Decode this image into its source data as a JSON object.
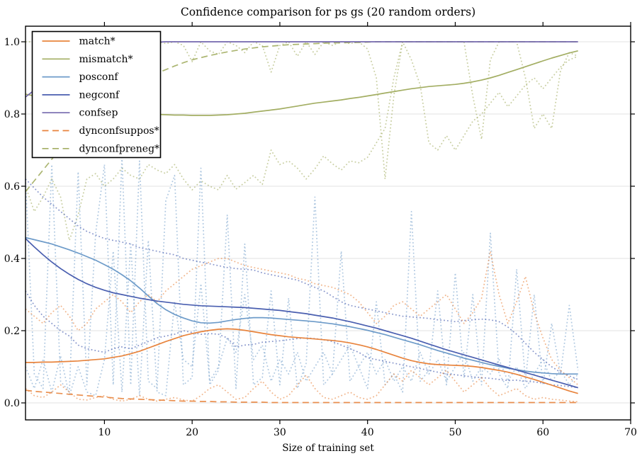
{
  "figure": {
    "title": "Confidence comparison for ps gs (20 random orders)",
    "xlabel": "Size of training set"
  },
  "colors": {
    "orange": "#e8843d",
    "olive": "#a3ae63",
    "lightblue": "#6d9bc9",
    "navy": "#4a5fb0",
    "purple": "#7468ae",
    "grid": "#e0e0e0",
    "spine": "#000000",
    "legend_border": "#000000",
    "legend_bg": "#ffffff"
  },
  "chart_data": {
    "type": "line",
    "title": "Confidence comparison for ps gs (20 random orders)",
    "xlabel": "Size of training set",
    "ylabel": "",
    "xlim": [
      1,
      70
    ],
    "ylim": [
      -0.047,
      1.043
    ],
    "xticks": [
      10,
      20,
      30,
      40,
      50,
      60,
      70
    ],
    "yticks": [
      "0.0",
      "0.2",
      "0.4",
      "0.6",
      "0.8",
      "1.0"
    ],
    "grid": "horizontal-only",
    "legend_position": "upper-left",
    "x_start": 1,
    "x_step": 1,
    "series": [
      {
        "name": "mismatch-run-upper",
        "label": "",
        "in_legend": false,
        "color": "olive",
        "style": "dotted",
        "alpha": 0.6,
        "values": [
          1.0,
          1.0,
          0.99,
          1.0,
          1.0,
          1.0,
          0.995,
          1.0,
          1.0,
          1.0,
          0.995,
          1.0,
          1.0,
          0.99,
          1.0,
          1.0,
          0.995,
          1.0,
          0.99,
          0.945,
          1.0,
          0.975,
          0.965,
          1.0,
          0.99,
          0.97,
          1.0,
          0.99,
          0.916,
          0.99,
          1.0,
          0.96,
          1.0,
          0.965,
          1.0,
          0.99,
          1.0,
          0.995,
          1.0,
          0.98,
          0.9,
          0.62,
          0.85,
          1.0,
          1.0,
          1.0,
          1.0,
          1.0,
          1.0,
          1.0,
          1.0,
          0.85,
          0.73,
          0.95,
          1.0,
          1.0,
          1.0,
          0.9,
          0.76,
          0.8,
          0.76,
          0.92,
          0.97,
          0.96
        ]
      },
      {
        "name": "mismatch-run-lower",
        "label": "",
        "in_legend": false,
        "color": "olive",
        "style": "dotted",
        "alpha": 0.6,
        "values": [
          0.6,
          0.53,
          0.57,
          0.62,
          0.57,
          0.45,
          0.52,
          0.62,
          0.635,
          0.6,
          0.62,
          0.65,
          0.63,
          0.62,
          0.66,
          0.645,
          0.635,
          0.66,
          0.62,
          0.59,
          0.615,
          0.6,
          0.59,
          0.63,
          0.592,
          0.61,
          0.63,
          0.605,
          0.7,
          0.66,
          0.67,
          0.65,
          0.62,
          0.648,
          0.684,
          0.662,
          0.645,
          0.67,
          0.665,
          0.68,
          0.72,
          0.76,
          0.9,
          1.0,
          0.95,
          0.88,
          0.72,
          0.7,
          0.74,
          0.7,
          0.74,
          0.78,
          0.8,
          0.83,
          0.86,
          0.82,
          0.85,
          0.88,
          0.9,
          0.87,
          0.9,
          0.93,
          0.95,
          0.96
        ]
      },
      {
        "name": "posconf-run-upper",
        "label": "",
        "in_legend": false,
        "color": "lightblue",
        "style": "dotted",
        "alpha": 0.55,
        "values": [
          0.62,
          0.08,
          0.04,
          0.66,
          0.06,
          0.03,
          0.64,
          0.05,
          0.47,
          0.66,
          0.05,
          0.68,
          0.05,
          0.67,
          0.06,
          0.04,
          0.56,
          0.63,
          0.05,
          0.07,
          0.65,
          0.05,
          0.09,
          0.52,
          0.04,
          0.44,
          0.05,
          0.07,
          0.31,
          0.05,
          0.29,
          0.04,
          0.11,
          0.57,
          0.05,
          0.08,
          0.42,
          0.06,
          0.1,
          0.04,
          0.28,
          0.05,
          0.08,
          0.03,
          0.53,
          0.06,
          0.09,
          0.31,
          0.05,
          0.36,
          0.07,
          0.3,
          0.05,
          0.47,
          0.08,
          0.04,
          0.37,
          0.06,
          0.3,
          0.05,
          0.22,
          0.08,
          0.27,
          0.09
        ]
      },
      {
        "name": "posconf-run-lower",
        "label": "",
        "in_legend": false,
        "color": "lightblue",
        "style": "dotted",
        "alpha": 0.55,
        "values": [
          0.1,
          0.04,
          0.12,
          0.03,
          0.13,
          0.02,
          0.1,
          0.03,
          0.02,
          0.12,
          0.42,
          0.03,
          0.44,
          0.02,
          0.45,
          0.03,
          0.02,
          0.28,
          0.12,
          0.1,
          0.33,
          0.06,
          0.1,
          0.18,
          0.14,
          0.3,
          0.12,
          0.16,
          0.06,
          0.12,
          0.08,
          0.14,
          0.06,
          0.1,
          0.14,
          0.08,
          0.12,
          0.16,
          0.1,
          0.14,
          0.08,
          0.12,
          0.06,
          0.1,
          0.06,
          0.14,
          0.08,
          0.12,
          0.06,
          0.1,
          0.14,
          0.06,
          0.1,
          0.08,
          0.12,
          0.06,
          0.1,
          0.04,
          0.08,
          0.12,
          0.06,
          0.09,
          0.05,
          0.08
        ]
      },
      {
        "name": "negconf-run-upper",
        "label": "",
        "in_legend": false,
        "color": "navy",
        "style": "dotted",
        "alpha": 0.65,
        "values": [
          0.62,
          0.595,
          0.57,
          0.55,
          0.53,
          0.51,
          0.49,
          0.475,
          0.465,
          0.455,
          0.45,
          0.445,
          0.44,
          0.43,
          0.425,
          0.42,
          0.415,
          0.41,
          0.4,
          0.395,
          0.39,
          0.385,
          0.38,
          0.375,
          0.372,
          0.37,
          0.368,
          0.36,
          0.355,
          0.35,
          0.345,
          0.34,
          0.33,
          0.32,
          0.31,
          0.295,
          0.28,
          0.27,
          0.265,
          0.26,
          0.255,
          0.25,
          0.245,
          0.24,
          0.238,
          0.236,
          0.234,
          0.23,
          0.228,
          0.225,
          0.228,
          0.23,
          0.232,
          0.23,
          0.225,
          0.21,
          0.19,
          0.165,
          0.14,
          0.12,
          0.1,
          0.085,
          0.075,
          0.065
        ]
      },
      {
        "name": "negconf-run-lower",
        "label": "",
        "in_legend": false,
        "color": "navy",
        "style": "dotted",
        "alpha": 0.65,
        "values": [
          0.31,
          0.27,
          0.24,
          0.22,
          0.2,
          0.185,
          0.16,
          0.15,
          0.145,
          0.14,
          0.15,
          0.155,
          0.15,
          0.16,
          0.17,
          0.18,
          0.185,
          0.19,
          0.2,
          0.195,
          0.19,
          0.192,
          0.19,
          0.18,
          0.155,
          0.16,
          0.162,
          0.168,
          0.17,
          0.172,
          0.175,
          0.178,
          0.18,
          0.178,
          0.175,
          0.17,
          0.16,
          0.15,
          0.14,
          0.125,
          0.12,
          0.115,
          0.11,
          0.105,
          0.1,
          0.095,
          0.09,
          0.085,
          0.08,
          0.078,
          0.075,
          0.072,
          0.07,
          0.068,
          0.065,
          0.062,
          0.063,
          0.06,
          0.058,
          0.055,
          0.05,
          0.048,
          0.045,
          0.042
        ]
      },
      {
        "name": "match-run-upper",
        "label": "",
        "in_legend": false,
        "color": "orange",
        "style": "dotted",
        "alpha": 0.6,
        "values": [
          0.26,
          0.24,
          0.22,
          0.25,
          0.27,
          0.24,
          0.2,
          0.22,
          0.26,
          0.28,
          0.3,
          0.28,
          0.25,
          0.28,
          0.3,
          0.28,
          0.31,
          0.33,
          0.35,
          0.37,
          0.38,
          0.39,
          0.4,
          0.4,
          0.39,
          0.38,
          0.375,
          0.37,
          0.365,
          0.36,
          0.355,
          0.345,
          0.34,
          0.33,
          0.325,
          0.32,
          0.31,
          0.3,
          0.28,
          0.25,
          0.22,
          0.24,
          0.27,
          0.28,
          0.26,
          0.24,
          0.26,
          0.28,
          0.3,
          0.26,
          0.22,
          0.25,
          0.29,
          0.42,
          0.3,
          0.22,
          0.28,
          0.35,
          0.25,
          0.18,
          0.12,
          0.09,
          0.07,
          0.05
        ]
      },
      {
        "name": "match-run-lower",
        "label": "",
        "in_legend": false,
        "color": "orange",
        "style": "dotted",
        "alpha": 0.6,
        "values": [
          0.04,
          0.02,
          0.015,
          0.03,
          0.05,
          0.03,
          0.01,
          0.008,
          0.015,
          0.02,
          0.01,
          0.005,
          0.01,
          0.02,
          0.01,
          0.005,
          0.01,
          0.015,
          0.008,
          0.005,
          0.02,
          0.04,
          0.05,
          0.03,
          0.01,
          0.015,
          0.04,
          0.06,
          0.03,
          0.01,
          0.02,
          0.05,
          0.077,
          0.04,
          0.015,
          0.01,
          0.02,
          0.03,
          0.015,
          0.01,
          0.02,
          0.05,
          0.08,
          0.06,
          0.09,
          0.07,
          0.05,
          0.07,
          0.09,
          0.06,
          0.03,
          0.05,
          0.07,
          0.04,
          0.02,
          0.03,
          0.04,
          0.02,
          0.01,
          0.015,
          0.01,
          0.008,
          0.005,
          0.003
        ]
      },
      {
        "name": "dynconfsuppos",
        "label": "dynconfsuppos*",
        "in_legend": true,
        "color": "orange",
        "style": "dashed",
        "alpha": 0.9,
        "values": [
          0.035,
          0.032,
          0.03,
          0.028,
          0.026,
          0.024,
          0.022,
          0.02,
          0.018,
          0.016,
          0.014,
          0.012,
          0.011,
          0.01,
          0.009,
          0.008,
          0.007,
          0.006,
          0.005,
          0.005,
          0.004,
          0.004,
          0.003,
          0.003,
          0.002,
          0.002,
          0.002,
          0.002,
          0.001,
          0.001,
          0.001,
          0.001,
          0.001,
          0.001,
          0.001,
          0.001,
          0.001,
          0.001,
          0.001,
          0.001,
          0.001,
          0.001,
          0.001,
          0.001,
          0.001,
          0.001,
          0.001,
          0.001,
          0.001,
          0.001,
          0.001,
          0.001,
          0.001,
          0.001,
          0.001,
          0.001,
          0.001,
          0.001,
          0.001,
          0.001,
          0.001,
          0.001,
          0.001,
          0.001
        ]
      },
      {
        "name": "dynconfpreneg",
        "label": "dynconfpreneg*",
        "in_legend": true,
        "color": "olive",
        "style": "dashed",
        "alpha": 0.9,
        "values": [
          0.585,
          0.615,
          0.645,
          0.675,
          0.703,
          0.73,
          0.755,
          0.778,
          0.8,
          0.822,
          0.843,
          0.86,
          0.875,
          0.889,
          0.901,
          0.913,
          0.923,
          0.933,
          0.942,
          0.95,
          0.956,
          0.962,
          0.967,
          0.972,
          0.976,
          0.98,
          0.983,
          0.986,
          0.988,
          0.99,
          0.992,
          0.993,
          0.994,
          0.995,
          0.996,
          0.997,
          0.997,
          0.998,
          0.998,
          0.999,
          1.0,
          1.0,
          1.0,
          1.0,
          1.0,
          1.0,
          1.0,
          1.0,
          1.0,
          1.0,
          1.0,
          1.0,
          1.0,
          1.0,
          1.0,
          1.0,
          1.0,
          1.0,
          1.0,
          1.0,
          1.0,
          1.0,
          1.0,
          1.0
        ]
      },
      {
        "name": "match",
        "label": "match*",
        "in_legend": true,
        "color": "orange",
        "style": "solid",
        "alpha": 1.0,
        "values": [
          0.112,
          0.112,
          0.113,
          0.113,
          0.114,
          0.115,
          0.116,
          0.118,
          0.12,
          0.122,
          0.126,
          0.13,
          0.136,
          0.143,
          0.152,
          0.161,
          0.17,
          0.178,
          0.186,
          0.192,
          0.197,
          0.201,
          0.204,
          0.205,
          0.204,
          0.201,
          0.197,
          0.193,
          0.189,
          0.186,
          0.183,
          0.181,
          0.179,
          0.177,
          0.175,
          0.173,
          0.17,
          0.166,
          0.161,
          0.155,
          0.148,
          0.14,
          0.132,
          0.124,
          0.117,
          0.112,
          0.108,
          0.106,
          0.105,
          0.104,
          0.103,
          0.101,
          0.098,
          0.094,
          0.09,
          0.085,
          0.079,
          0.072,
          0.065,
          0.057,
          0.049,
          0.041,
          0.033,
          0.026
        ]
      },
      {
        "name": "mismatch",
        "label": "mismatch*",
        "in_legend": true,
        "color": "olive",
        "style": "solid",
        "alpha": 1.0,
        "values": [
          0.855,
          0.85,
          0.845,
          0.84,
          0.835,
          0.83,
          0.825,
          0.82,
          0.815,
          0.811,
          0.808,
          0.805,
          0.803,
          0.801,
          0.8,
          0.799,
          0.798,
          0.797,
          0.797,
          0.796,
          0.796,
          0.796,
          0.797,
          0.798,
          0.8,
          0.802,
          0.805,
          0.808,
          0.811,
          0.814,
          0.818,
          0.822,
          0.826,
          0.83,
          0.833,
          0.836,
          0.839,
          0.843,
          0.846,
          0.85,
          0.854,
          0.858,
          0.862,
          0.866,
          0.87,
          0.873,
          0.876,
          0.878,
          0.88,
          0.882,
          0.885,
          0.889,
          0.894,
          0.9,
          0.907,
          0.915,
          0.923,
          0.931,
          0.939,
          0.947,
          0.955,
          0.962,
          0.969,
          0.975
        ]
      },
      {
        "name": "posconf",
        "label": "posconf",
        "in_legend": true,
        "color": "lightblue",
        "style": "solid",
        "alpha": 1.0,
        "values": [
          0.458,
          0.452,
          0.446,
          0.44,
          0.432,
          0.424,
          0.415,
          0.405,
          0.395,
          0.383,
          0.37,
          0.355,
          0.338,
          0.318,
          0.296,
          0.275,
          0.258,
          0.245,
          0.235,
          0.227,
          0.222,
          0.221,
          0.223,
          0.227,
          0.231,
          0.234,
          0.236,
          0.236,
          0.235,
          0.233,
          0.231,
          0.229,
          0.227,
          0.225,
          0.222,
          0.219,
          0.215,
          0.211,
          0.206,
          0.201,
          0.195,
          0.189,
          0.182,
          0.175,
          0.168,
          0.161,
          0.153,
          0.145,
          0.138,
          0.131,
          0.124,
          0.118,
          0.112,
          0.106,
          0.101,
          0.096,
          0.092,
          0.088,
          0.085,
          0.083,
          0.081,
          0.08,
          0.08,
          0.08
        ]
      },
      {
        "name": "negconf",
        "label": "negconf",
        "in_legend": true,
        "color": "navy",
        "style": "solid",
        "alpha": 1.0,
        "values": [
          0.455,
          0.432,
          0.41,
          0.39,
          0.372,
          0.356,
          0.342,
          0.33,
          0.32,
          0.312,
          0.305,
          0.3,
          0.295,
          0.29,
          0.286,
          0.282,
          0.279,
          0.276,
          0.273,
          0.271,
          0.269,
          0.268,
          0.267,
          0.266,
          0.265,
          0.264,
          0.262,
          0.26,
          0.258,
          0.256,
          0.253,
          0.25,
          0.247,
          0.243,
          0.239,
          0.235,
          0.23,
          0.225,
          0.219,
          0.213,
          0.207,
          0.2,
          0.193,
          0.186,
          0.179,
          0.171,
          0.163,
          0.155,
          0.147,
          0.14,
          0.133,
          0.126,
          0.119,
          0.112,
          0.105,
          0.098,
          0.091,
          0.084,
          0.077,
          0.07,
          0.063,
          0.056,
          0.049,
          0.042
        ]
      },
      {
        "name": "confsep",
        "label": "confsep",
        "in_legend": true,
        "color": "purple",
        "style": "solid",
        "alpha": 1.0,
        "values": [
          0.847,
          0.866,
          0.885,
          0.901,
          0.916,
          0.93,
          0.943,
          0.955,
          0.964,
          0.972,
          0.979,
          0.985,
          0.99,
          0.994,
          0.997,
          0.999,
          1.0,
          1.0,
          1.0,
          1.0,
          1.0,
          1.0,
          1.0,
          1.0,
          1.0,
          1.0,
          1.0,
          1.0,
          1.0,
          1.0,
          1.0,
          1.0,
          1.0,
          1.0,
          1.0,
          1.0,
          1.0,
          1.0,
          1.0,
          1.0,
          1.0,
          1.0,
          1.0,
          1.0,
          1.0,
          1.0,
          1.0,
          1.0,
          1.0,
          1.0,
          1.0,
          1.0,
          1.0,
          1.0,
          1.0,
          1.0,
          1.0,
          1.0,
          1.0,
          1.0,
          1.0,
          1.0,
          1.0,
          1.0
        ]
      }
    ],
    "legend_order": [
      "match",
      "mismatch",
      "posconf",
      "negconf",
      "confsep",
      "dynconfsuppos",
      "dynconfpreneg"
    ]
  }
}
